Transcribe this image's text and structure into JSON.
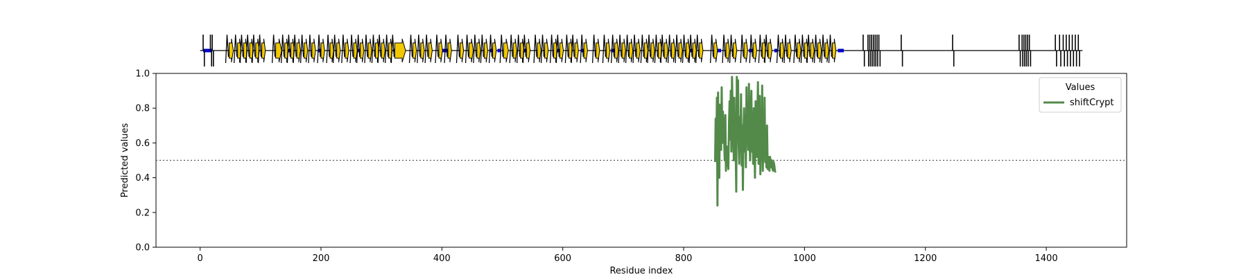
{
  "chart_data": {
    "type": "line",
    "title": "",
    "xlabel": "Residue index",
    "ylabel": "Predicted values",
    "xlim": [
      -73,
      1533
    ],
    "ylim": [
      0.0,
      1.0
    ],
    "xticks": [
      0,
      200,
      400,
      600,
      800,
      1000,
      1200,
      1400
    ],
    "yticks": [
      0.0,
      0.2,
      0.4,
      0.6,
      0.8,
      1.0
    ],
    "threshold": 0.5,
    "grid": false,
    "legend": {
      "title": "Values",
      "placement": "top-right"
    },
    "series": [
      {
        "name": "shiftCrypt",
        "color": "#538a4a",
        "x": [
          852,
          853,
          854,
          855,
          856,
          857,
          858,
          859,
          860,
          861,
          862,
          863,
          864,
          865,
          866,
          867,
          868,
          869,
          870,
          871,
          872,
          873,
          874,
          875,
          876,
          877,
          878,
          879,
          880,
          881,
          882,
          883,
          884,
          885,
          886,
          887,
          888,
          889,
          890,
          891,
          892,
          893,
          894,
          895,
          896,
          897,
          898,
          899,
          900,
          901,
          902,
          903,
          904,
          905,
          906,
          907,
          908,
          909,
          910,
          911,
          912,
          913,
          914,
          915,
          916,
          917,
          918,
          919,
          920,
          921,
          922,
          923,
          924,
          925,
          926,
          927,
          928,
          929,
          930,
          931,
          932,
          933,
          934,
          935,
          936,
          937,
          938,
          939,
          940,
          941,
          942,
          943,
          944,
          945,
          946,
          947,
          948,
          949,
          950,
          951,
          952
        ],
        "values": [
          0.49,
          0.74,
          0.52,
          0.86,
          0.24,
          0.89,
          0.58,
          0.4,
          0.82,
          0.66,
          0.56,
          0.92,
          0.6,
          0.78,
          0.7,
          0.62,
          0.5,
          0.76,
          0.44,
          0.58,
          0.47,
          0.52,
          0.45,
          0.7,
          0.84,
          0.62,
          0.9,
          0.55,
          0.98,
          0.8,
          0.68,
          0.5,
          0.86,
          0.52,
          0.6,
          0.32,
          0.98,
          0.82,
          0.96,
          0.6,
          0.48,
          0.75,
          0.55,
          0.88,
          0.47,
          0.7,
          0.33,
          0.66,
          0.8,
          0.55,
          0.76,
          0.46,
          0.92,
          0.6,
          0.7,
          0.56,
          0.94,
          0.63,
          0.5,
          0.74,
          0.9,
          0.55,
          0.68,
          0.48,
          0.8,
          0.65,
          0.4,
          0.84,
          0.6,
          0.52,
          0.76,
          0.95,
          0.48,
          0.58,
          0.87,
          0.42,
          0.67,
          0.5,
          0.93,
          0.44,
          0.6,
          0.54,
          0.86,
          0.49,
          0.62,
          0.46,
          0.7,
          0.45,
          0.52,
          0.47,
          0.44,
          0.52,
          0.48,
          0.46,
          0.5,
          0.45,
          0.44,
          0.49,
          0.47,
          0.44,
          0.43
        ]
      }
    ]
  },
  "secondary_structure": {
    "length": 1460,
    "line_color": "#000000",
    "strand_color": "#f0c800",
    "helix_color": "#0000cc",
    "coils": [
      [
        5,
        7
      ],
      [
        17,
        19
      ],
      [
        20,
        22
      ],
      [
        1097,
        1099
      ],
      [
        1105,
        1106
      ],
      [
        1108,
        1109
      ],
      [
        1111,
        1112
      ],
      [
        1114,
        1115
      ],
      [
        1117,
        1118
      ],
      [
        1120,
        1121
      ],
      [
        1123,
        1125
      ],
      [
        1160,
        1162
      ],
      [
        1245,
        1247
      ],
      [
        1355,
        1357
      ],
      [
        1360,
        1361
      ],
      [
        1363,
        1364
      ],
      [
        1366,
        1367
      ],
      [
        1369,
        1370
      ],
      [
        1372,
        1374
      ],
      [
        1415,
        1417
      ],
      [
        1422,
        1424
      ],
      [
        1428,
        1430
      ],
      [
        1433,
        1435
      ],
      [
        1438,
        1440
      ],
      [
        1443,
        1445
      ],
      [
        1448,
        1450
      ],
      [
        1453,
        1455
      ]
    ],
    "strands": [
      [
        48,
        55
      ],
      [
        62,
        68
      ],
      [
        72,
        78
      ],
      [
        82,
        88
      ],
      [
        92,
        98
      ],
      [
        102,
        108
      ],
      [
        125,
        135
      ],
      [
        140,
        146
      ],
      [
        150,
        156
      ],
      [
        160,
        166
      ],
      [
        172,
        178
      ],
      [
        185,
        191
      ],
      [
        200,
        206
      ],
      [
        215,
        221
      ],
      [
        226,
        232
      ],
      [
        240,
        246
      ],
      [
        254,
        260
      ],
      [
        265,
        271
      ],
      [
        278,
        284
      ],
      [
        290,
        296
      ],
      [
        300,
        306
      ],
      [
        312,
        318
      ],
      [
        322,
        340
      ],
      [
        352,
        358
      ],
      [
        365,
        371
      ],
      [
        378,
        384
      ],
      [
        395,
        401
      ],
      [
        410,
        416
      ],
      [
        430,
        436
      ],
      [
        445,
        452
      ],
      [
        458,
        464
      ],
      [
        470,
        476
      ],
      [
        484,
        490
      ],
      [
        502,
        510
      ],
      [
        518,
        524
      ],
      [
        530,
        536
      ],
      [
        540,
        546
      ],
      [
        558,
        564
      ],
      [
        570,
        576
      ],
      [
        585,
        591
      ],
      [
        595,
        601
      ],
      [
        610,
        616
      ],
      [
        620,
        626
      ],
      [
        635,
        641
      ],
      [
        655,
        661
      ],
      [
        672,
        678
      ],
      [
        686,
        692
      ],
      [
        698,
        704
      ],
      [
        710,
        716
      ],
      [
        722,
        728
      ],
      [
        735,
        741
      ],
      [
        746,
        752
      ],
      [
        758,
        764
      ],
      [
        768,
        774
      ],
      [
        780,
        786
      ],
      [
        792,
        798
      ],
      [
        804,
        810
      ],
      [
        815,
        821
      ],
      [
        826,
        832
      ],
      [
        850,
        856
      ],
      [
        870,
        876
      ],
      [
        882,
        888
      ],
      [
        900,
        906
      ],
      [
        915,
        921
      ],
      [
        930,
        936
      ],
      [
        940,
        946
      ],
      [
        960,
        966
      ],
      [
        972,
        978
      ],
      [
        988,
        994
      ],
      [
        1000,
        1006
      ],
      [
        1010,
        1016
      ],
      [
        1022,
        1028
      ],
      [
        1034,
        1040
      ],
      [
        1046,
        1052
      ]
    ],
    "helices": [
      [
        5,
        20
      ],
      [
        140,
        152
      ],
      [
        195,
        205
      ],
      [
        255,
        265
      ],
      [
        320,
        330
      ],
      [
        400,
        410
      ],
      [
        480,
        488
      ],
      [
        492,
        498
      ],
      [
        535,
        545
      ],
      [
        590,
        596
      ],
      [
        630,
        640
      ],
      [
        680,
        690
      ],
      [
        720,
        726
      ],
      [
        810,
        818
      ],
      [
        855,
        862
      ],
      [
        880,
        886
      ],
      [
        908,
        918
      ],
      [
        950,
        956
      ],
      [
        985,
        990
      ],
      [
        1055,
        1065
      ]
    ]
  }
}
